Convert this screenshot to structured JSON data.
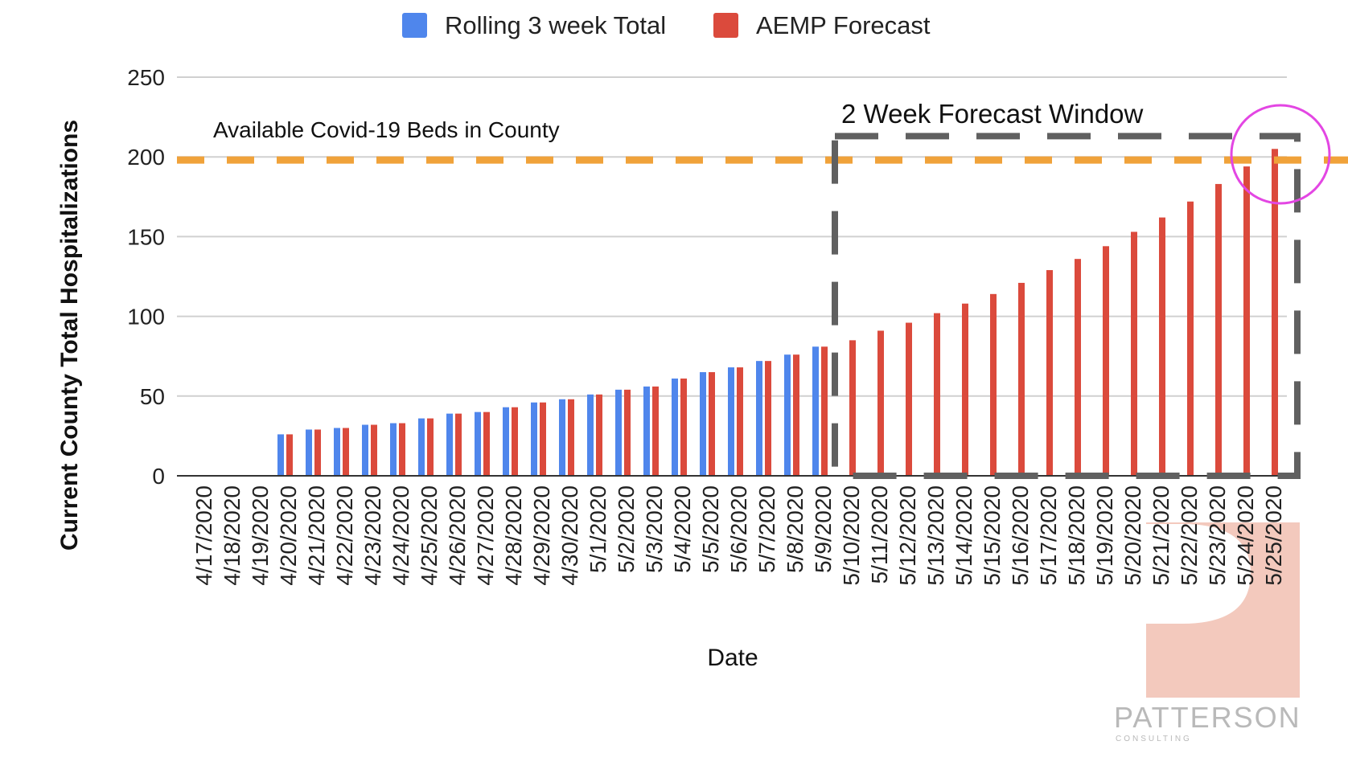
{
  "chart_data": {
    "type": "bar",
    "title": "",
    "xlabel": "Date",
    "ylabel": "Current County Total Hospitalizations",
    "ylim": [
      0,
      250
    ],
    "yticks": [
      0,
      50,
      100,
      150,
      200,
      250
    ],
    "grid": true,
    "legend_position": "top",
    "categories": [
      "4/17/2020",
      "4/18/2020",
      "4/19/2020",
      "4/20/2020",
      "4/21/2020",
      "4/22/2020",
      "4/23/2020",
      "4/24/2020",
      "4/25/2020",
      "4/26/2020",
      "4/27/2020",
      "4/28/2020",
      "4/29/2020",
      "4/30/2020",
      "5/1/2020",
      "5/2/2020",
      "5/3/2020",
      "5/4/2020",
      "5/5/2020",
      "5/6/2020",
      "5/7/2020",
      "5/8/2020",
      "5/9/2020",
      "5/10/2020",
      "5/11/2020",
      "5/12/2020",
      "5/13/2020",
      "5/14/2020",
      "5/15/2020",
      "5/16/2020",
      "5/17/2020",
      "5/18/2020",
      "5/19/2020",
      "5/20/2020",
      "5/21/2020",
      "5/22/2020",
      "5/23/2020",
      "5/24/2020",
      "5/25/2020"
    ],
    "series": [
      {
        "name": "Rolling 3 week Total",
        "color": "#4f86ec",
        "values": [
          0,
          0,
          0,
          26,
          29,
          30,
          32,
          33,
          36,
          39,
          40,
          43,
          46,
          48,
          51,
          54,
          56,
          61,
          65,
          68,
          72,
          76,
          81,
          null,
          null,
          null,
          null,
          null,
          null,
          null,
          null,
          null,
          null,
          null,
          null,
          null,
          null,
          null,
          null
        ]
      },
      {
        "name": "AEMP Forecast",
        "color": "#db4a3c",
        "values": [
          0,
          0,
          0,
          26,
          29,
          30,
          32,
          33,
          36,
          39,
          40,
          43,
          46,
          48,
          51,
          54,
          56,
          61,
          65,
          68,
          72,
          76,
          81,
          85,
          91,
          96,
          102,
          108,
          114,
          121,
          129,
          136,
          144,
          153,
          162,
          172,
          183,
          194,
          205
        ]
      }
    ],
    "annotations": {
      "capacity_label": "Available Covid-19 Beds in County",
      "capacity_value": 198,
      "capacity_color": "#f0a23a",
      "forecast_window_label": "2 Week Forecast Window",
      "forecast_window_color": "#606060",
      "highlight_color": "#e346e3"
    }
  },
  "watermark": {
    "name": "PATTERSON",
    "sub": "CONSULTING",
    "color": "#f3c9bd"
  }
}
